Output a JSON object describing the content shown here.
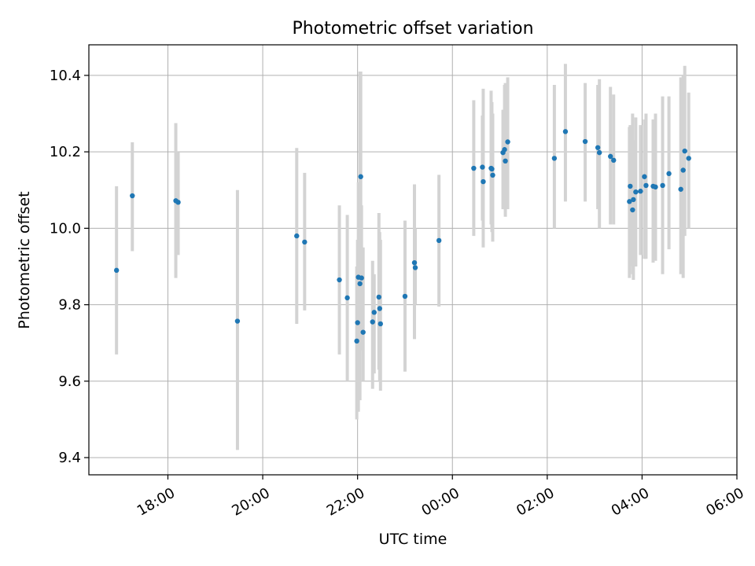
{
  "chart_data": {
    "type": "scatter",
    "title": "Photometric offset variation",
    "xlabel": "UTC time",
    "ylabel": "Photometric offset",
    "xlim": [
      "16:20",
      "06:00"
    ],
    "ylim": [
      9.355,
      10.48
    ],
    "x_ticks": [
      "18:00",
      "20:00",
      "22:00",
      "00:00",
      "02:00",
      "04:00",
      "06:00"
    ],
    "y_ticks": [
      9.4,
      9.6,
      9.8,
      10.0,
      10.2,
      10.4
    ],
    "y_tick_labels": [
      "9.4",
      "9.6",
      "9.8",
      "10.0",
      "10.2",
      "10.4"
    ],
    "grid": true,
    "colors": {
      "point": "#1f77b4",
      "errorbar": "#d3d3d3",
      "grid": "#b0b0b0"
    },
    "series": [
      {
        "x": [
          "16:55",
          "17:15",
          "18:10",
          "18:13",
          "19:28",
          "20:43",
          "20:53",
          "21:37",
          "21:47",
          "21:59",
          "22:00",
          "22:01",
          "22:03",
          "22:04",
          "22:05",
          "22:07",
          "22:19",
          "22:21",
          "22:27",
          "22:28",
          "22:29",
          "23:00",
          "23:12",
          "23:13",
          "23:43",
          "00:27",
          "00:38",
          "00:39",
          "00:49",
          "00:50",
          "00:51",
          "01:04",
          "01:06",
          "01:07",
          "01:10",
          "02:09",
          "02:23",
          "02:48",
          "03:04",
          "03:06",
          "03:20",
          "03:24",
          "03:44",
          "03:45",
          "03:48",
          "03:49",
          "03:52",
          "03:58",
          "04:03",
          "04:05",
          "04:14",
          "04:17",
          "04:26",
          "04:34",
          "04:49",
          "04:52",
          "04:54",
          "04:59"
        ],
        "y": [
          9.89,
          10.085,
          10.072,
          10.068,
          9.757,
          9.98,
          9.964,
          9.865,
          9.818,
          9.705,
          9.753,
          9.872,
          9.855,
          10.135,
          9.87,
          9.728,
          9.755,
          9.78,
          9.82,
          9.79,
          9.75,
          9.822,
          9.91,
          9.897,
          9.968,
          10.157,
          10.16,
          10.122,
          10.157,
          10.155,
          10.139,
          10.198,
          10.206,
          10.176,
          10.226,
          10.183,
          10.253,
          10.227,
          10.211,
          10.198,
          10.188,
          10.178,
          10.07,
          10.11,
          10.048,
          10.075,
          10.095,
          10.097,
          10.135,
          10.112,
          10.11,
          10.108,
          10.112,
          10.143,
          10.102,
          10.152,
          10.202,
          10.183
        ],
        "err_low": [
          9.67,
          9.94,
          9.87,
          9.93,
          9.42,
          9.75,
          9.785,
          9.67,
          9.6,
          9.5,
          9.65,
          9.52,
          9.55,
          9.9,
          9.68,
          9.6,
          9.58,
          9.62,
          9.63,
          9.6,
          9.575,
          9.625,
          9.71,
          9.8,
          9.795,
          9.98,
          10.02,
          9.95,
          10.01,
          9.99,
          9.965,
          10.05,
          10.05,
          10.03,
          10.05,
          10.0,
          10.07,
          10.07,
          10.05,
          10.0,
          10.01,
          10.01,
          9.87,
          9.9,
          9.88,
          9.865,
          9.9,
          9.93,
          9.92,
          9.92,
          9.91,
          9.915,
          9.88,
          9.945,
          9.88,
          9.87,
          9.98,
          10.0
        ],
        "err_high": [
          10.11,
          10.225,
          10.275,
          10.2,
          10.1,
          10.21,
          10.145,
          10.06,
          10.035,
          9.9,
          9.97,
          10.12,
          10.41,
          10.41,
          10.06,
          9.95,
          9.915,
          9.88,
          10.04,
          9.99,
          9.97,
          10.02,
          10.115,
          10.0,
          10.14,
          10.335,
          10.295,
          10.365,
          10.36,
          10.33,
          10.3,
          10.31,
          10.375,
          10.38,
          10.395,
          10.375,
          10.43,
          10.38,
          10.375,
          10.39,
          10.37,
          10.35,
          10.265,
          10.27,
          10.3,
          10.23,
          10.29,
          10.27,
          10.285,
          10.3,
          10.285,
          10.3,
          10.345,
          10.345,
          10.395,
          10.4,
          10.425,
          10.355
        ]
      }
    ]
  }
}
